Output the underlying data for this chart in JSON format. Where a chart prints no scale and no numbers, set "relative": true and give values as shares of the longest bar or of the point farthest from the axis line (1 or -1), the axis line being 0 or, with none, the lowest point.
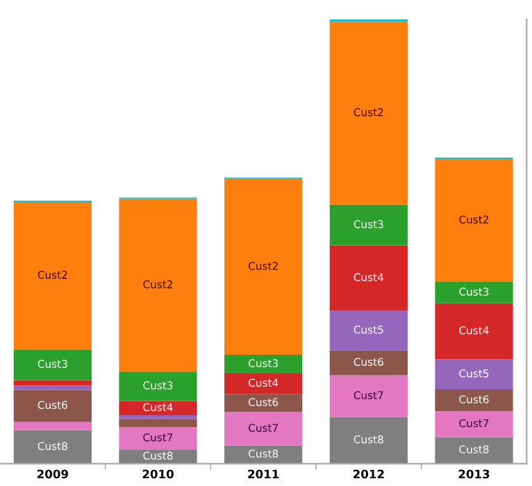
{
  "chart_data": {
    "type": "bar",
    "stacked": true,
    "relative": true,
    "categories": [
      "2009",
      "2010",
      "2011",
      "2012",
      "2013"
    ],
    "series": [
      {
        "name": "Cust8",
        "color": "#7f7f7f",
        "values": [
          0.075,
          0.032,
          0.041,
          0.105,
          0.06
        ]
      },
      {
        "name": "Cust7",
        "color": "#e377c2",
        "values": [
          0.019,
          0.05,
          0.075,
          0.094,
          0.058
        ]
      },
      {
        "name": "Cust6",
        "color": "#8c564b",
        "values": [
          0.072,
          0.019,
          0.041,
          0.056,
          0.049
        ]
      },
      {
        "name": "Cust5",
        "color": "#9467bd",
        "values": [
          0.01,
          0.008,
          null,
          0.089,
          0.068
        ]
      },
      {
        "name": "Cust4",
        "color": "#d62728",
        "values": [
          0.012,
          0.032,
          0.046,
          0.147,
          0.126
        ]
      },
      {
        "name": "Cust3",
        "color": "#2ca02c",
        "values": [
          0.069,
          0.066,
          0.042,
          0.092,
          0.048
        ]
      },
      {
        "name": "Cust2",
        "color": "#ff7f0e",
        "values": [
          0.332,
          0.389,
          0.396,
          0.412,
          0.277
        ]
      },
      {
        "color": "#17becf",
        "values": [
          0.003,
          0.003,
          0.003,
          0.005,
          0.003
        ]
      }
    ],
    "grid": false,
    "legend": false
  }
}
